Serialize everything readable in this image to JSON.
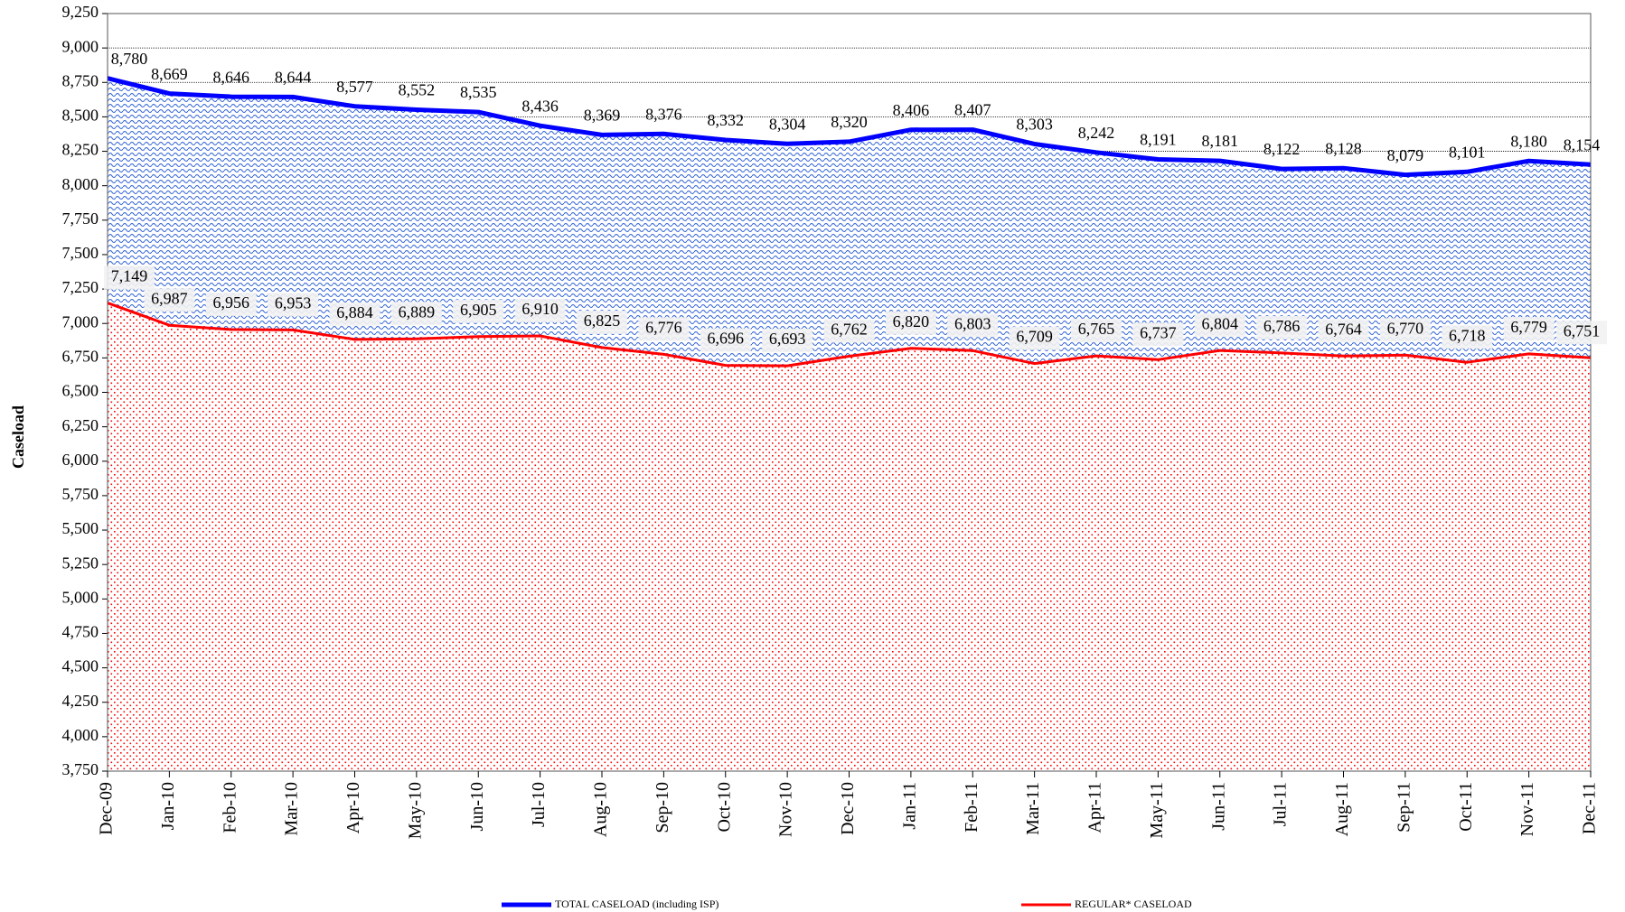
{
  "chart_data": {
    "type": "area",
    "y_label": "Caseload",
    "categories": [
      "Dec-09",
      "Jan-10",
      "Feb-10",
      "Mar-10",
      "Apr-10",
      "May-10",
      "Jun-10",
      "Jul-10",
      "Aug-10",
      "Sep-10",
      "Oct-10",
      "Nov-10",
      "Dec-10",
      "Jan-11",
      "Feb-11",
      "Mar-11",
      "Apr-11",
      "May-11",
      "Jun-11",
      "Jul-11",
      "Aug-11",
      "Sep-11",
      "Oct-11",
      "Nov-11",
      "Dec-11"
    ],
    "series": [
      {
        "name": "TOTAL CASELOAD (including ISP)",
        "color": "#0000ff",
        "values": [
          8780,
          8669,
          8646,
          8644,
          8577,
          8552,
          8535,
          8436,
          8369,
          8376,
          8332,
          8304,
          8320,
          8406,
          8407,
          8303,
          8242,
          8191,
          8181,
          8122,
          8128,
          8079,
          8101,
          8180,
          8154
        ],
        "value_labels": [
          "8,780",
          "8,669",
          "8,646",
          "8,644",
          "8,577",
          "8,552",
          "8,535",
          "8,436",
          "8,369",
          "8,376",
          "8,332",
          "8,304",
          "8,320",
          "8,406",
          "8,407",
          "8,303",
          "8,242",
          "8,191",
          "8,181",
          "8,122",
          "8,128",
          "8,079",
          "8,101",
          "8,180",
          "8,154"
        ]
      },
      {
        "name": "REGULAR* CASELOAD",
        "color": "#ff0000",
        "values": [
          7149,
          6987,
          6956,
          6953,
          6884,
          6889,
          6905,
          6910,
          6825,
          6776,
          6696,
          6693,
          6762,
          6820,
          6803,
          6709,
          6765,
          6737,
          6804,
          6786,
          6764,
          6770,
          6718,
          6779,
          6751
        ],
        "value_labels": [
          "7,149",
          "6,987",
          "6,956",
          "6,953",
          "6,884",
          "6,889",
          "6,905",
          "6,910",
          "6,825",
          "6,776",
          "6,696",
          "6,693",
          "6,762",
          "6,820",
          "6,803",
          "6,709",
          "6,765",
          "6,737",
          "6,804",
          "6,786",
          "6,764",
          "6,770",
          "6,718",
          "6,779",
          "6,751"
        ]
      }
    ],
    "ylim": [
      3750,
      9250
    ],
    "yticks": [
      {
        "value": 3750,
        "label": "3,750"
      },
      {
        "value": 4000,
        "label": "4,000"
      },
      {
        "value": 4250,
        "label": "4,250"
      },
      {
        "value": 4500,
        "label": "4,500"
      },
      {
        "value": 4750,
        "label": "4,750"
      },
      {
        "value": 5000,
        "label": "5,000"
      },
      {
        "value": 5250,
        "label": "5,250"
      },
      {
        "value": 5500,
        "label": "5,500"
      },
      {
        "value": 5750,
        "label": "5,750"
      },
      {
        "value": 6000,
        "label": "6,000"
      },
      {
        "value": 6250,
        "label": "6,250"
      },
      {
        "value": 6500,
        "label": "6,500"
      },
      {
        "value": 6750,
        "label": "6,750"
      },
      {
        "value": 7000,
        "label": "7,000"
      },
      {
        "value": 7250,
        "label": "7,250"
      },
      {
        "value": 7500,
        "label": "7,500"
      },
      {
        "value": 7750,
        "label": "7,750"
      },
      {
        "value": 8000,
        "label": "8,000"
      },
      {
        "value": 8250,
        "label": "8,250"
      },
      {
        "value": 8500,
        "label": "8,500"
      },
      {
        "value": 8750,
        "label": "8,750"
      },
      {
        "value": 9000,
        "label": "9,000"
      },
      {
        "value": 9250,
        "label": "9,250"
      }
    ],
    "grid": true,
    "legend": "bottom"
  }
}
